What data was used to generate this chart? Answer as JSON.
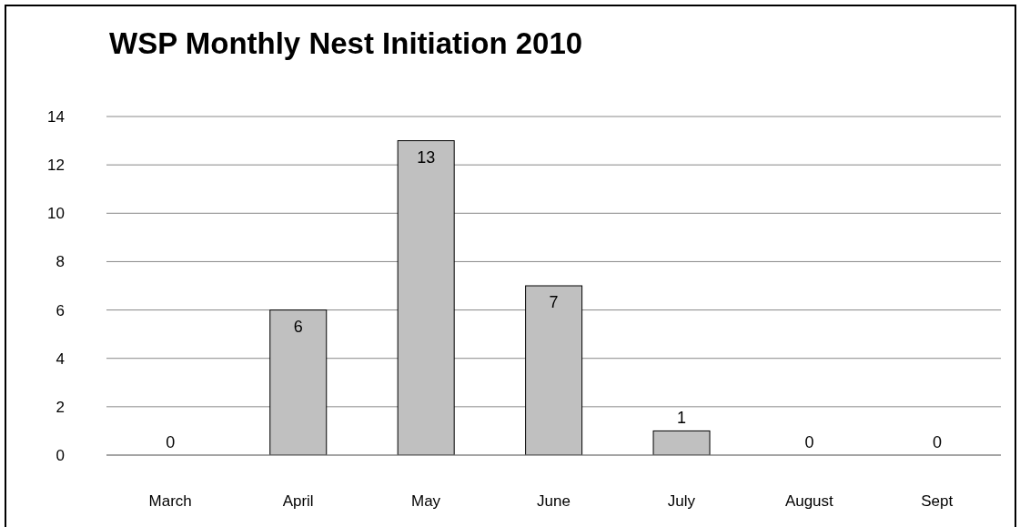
{
  "chart_data": {
    "type": "bar",
    "title": "WSP Monthly Nest Initiation 2010",
    "categories": [
      "March",
      "April",
      "May",
      "June",
      "July",
      "August",
      "Sept"
    ],
    "values": [
      0,
      6,
      13,
      7,
      1,
      0,
      0
    ],
    "color": "#c0c0c0",
    "ylim": [
      0,
      14
    ],
    "yticks": [
      0,
      2,
      4,
      6,
      8,
      10,
      12,
      14
    ],
    "grid": "y",
    "data_labels": true
  }
}
